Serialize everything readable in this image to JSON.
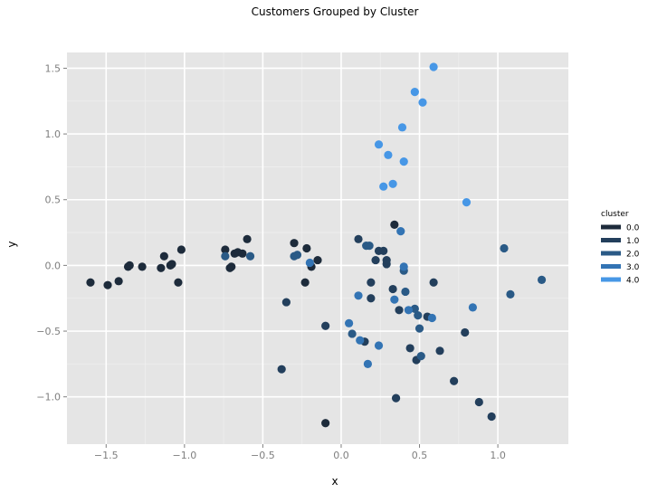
{
  "chart_data": {
    "type": "scatter",
    "title": "Customers Grouped by Cluster",
    "xlabel": "x",
    "ylabel": "y",
    "xlim": [
      -1.75,
      1.45
    ],
    "ylim": [
      -1.36,
      1.62
    ],
    "x_ticks": [
      -1.5,
      -1.0,
      -0.5,
      0.0,
      0.5,
      1.0
    ],
    "x_tick_labels": [
      "−1.5",
      "−1.0",
      "−0.5",
      "0.0",
      "0.5",
      "1.0"
    ],
    "y_ticks": [
      -1.0,
      -0.5,
      0.0,
      0.5,
      1.0,
      1.5
    ],
    "y_tick_labels": [
      "−1.0",
      "−0.5",
      "0.0",
      "0.5",
      "1.0",
      "1.5"
    ],
    "grid": true,
    "legend": {
      "title": "cluster",
      "placement": "right",
      "entries": [
        {
          "label": "0.0",
          "color": "#1d2b3b"
        },
        {
          "label": "1.0",
          "color": "#233f5c"
        },
        {
          "label": "2.0",
          "color": "#2a5a86"
        },
        {
          "label": "3.0",
          "color": "#3374b4"
        },
        {
          "label": "4.0",
          "color": "#4797e6"
        }
      ]
    },
    "series": [
      {
        "cluster": "0.0",
        "color": "#1d2b3b",
        "points": [
          [
            -1.6,
            -0.13
          ],
          [
            -1.49,
            -0.15
          ],
          [
            -1.42,
            -0.12
          ],
          [
            -1.36,
            -0.01
          ],
          [
            -1.35,
            0.0
          ],
          [
            -1.27,
            -0.01
          ],
          [
            -1.15,
            -0.02
          ],
          [
            -1.13,
            0.07
          ],
          [
            -1.09,
            0.0
          ],
          [
            -1.08,
            0.01
          ],
          [
            -1.04,
            -0.13
          ],
          [
            -1.02,
            0.12
          ],
          [
            -0.74,
            0.12
          ],
          [
            -0.71,
            -0.02
          ],
          [
            -0.7,
            -0.01
          ],
          [
            -0.68,
            0.09
          ],
          [
            -0.66,
            0.1
          ],
          [
            -0.63,
            0.09
          ],
          [
            -0.6,
            0.2
          ],
          [
            -0.3,
            0.17
          ],
          [
            -0.23,
            -0.13
          ],
          [
            -0.22,
            0.13
          ],
          [
            -0.19,
            -0.01
          ],
          [
            -0.15,
            0.04
          ],
          [
            -0.1,
            -1.2
          ],
          [
            0.34,
            0.31
          ]
        ]
      },
      {
        "cluster": "1.0",
        "color": "#233f5c",
        "points": [
          [
            -0.38,
            -0.79
          ],
          [
            -0.35,
            -0.28
          ],
          [
            -0.1,
            -0.46
          ],
          [
            0.11,
            0.2
          ],
          [
            0.15,
            -0.58
          ],
          [
            0.19,
            -0.25
          ],
          [
            0.19,
            -0.13
          ],
          [
            0.22,
            0.04
          ],
          [
            0.24,
            0.11
          ],
          [
            0.27,
            0.11
          ],
          [
            0.29,
            0.01
          ],
          [
            0.29,
            0.04
          ],
          [
            0.33,
            -0.18
          ],
          [
            0.35,
            -1.01
          ],
          [
            0.37,
            -0.34
          ],
          [
            0.44,
            -0.63
          ],
          [
            0.48,
            -0.72
          ],
          [
            0.55,
            -0.39
          ],
          [
            0.59,
            -0.13
          ],
          [
            0.63,
            -0.65
          ],
          [
            0.72,
            -0.88
          ],
          [
            0.79,
            -0.51
          ],
          [
            0.88,
            -1.04
          ],
          [
            0.96,
            -1.15
          ]
        ]
      },
      {
        "cluster": "2.0",
        "color": "#2a5a86",
        "points": [
          [
            -0.74,
            0.07
          ],
          [
            -0.58,
            0.07
          ],
          [
            -0.3,
            0.07
          ],
          [
            -0.28,
            0.08
          ],
          [
            0.07,
            -0.52
          ],
          [
            0.16,
            0.15
          ],
          [
            0.18,
            0.15
          ],
          [
            0.4,
            -0.04
          ],
          [
            0.41,
            -0.2
          ],
          [
            0.47,
            -0.33
          ],
          [
            0.49,
            -0.38
          ],
          [
            0.5,
            -0.48
          ],
          [
            0.51,
            -0.69
          ],
          [
            1.04,
            0.13
          ],
          [
            1.08,
            -0.22
          ],
          [
            1.28,
            -0.11
          ]
        ]
      },
      {
        "cluster": "3.0",
        "color": "#3374b4",
        "points": [
          [
            -0.2,
            0.02
          ],
          [
            0.05,
            -0.44
          ],
          [
            0.11,
            -0.23
          ],
          [
            0.12,
            -0.57
          ],
          [
            0.17,
            -0.75
          ],
          [
            0.24,
            -0.61
          ],
          [
            0.34,
            -0.26
          ],
          [
            0.38,
            0.26
          ],
          [
            0.4,
            -0.01
          ],
          [
            0.43,
            -0.34
          ],
          [
            0.58,
            -0.4
          ],
          [
            0.84,
            -0.32
          ]
        ]
      },
      {
        "cluster": "4.0",
        "color": "#4797e6",
        "points": [
          [
            0.24,
            0.92
          ],
          [
            0.27,
            0.6
          ],
          [
            0.3,
            0.84
          ],
          [
            0.33,
            0.62
          ],
          [
            0.39,
            1.05
          ],
          [
            0.4,
            0.79
          ],
          [
            0.47,
            1.32
          ],
          [
            0.52,
            1.24
          ],
          [
            0.59,
            1.51
          ],
          [
            0.8,
            0.48
          ]
        ]
      }
    ]
  }
}
